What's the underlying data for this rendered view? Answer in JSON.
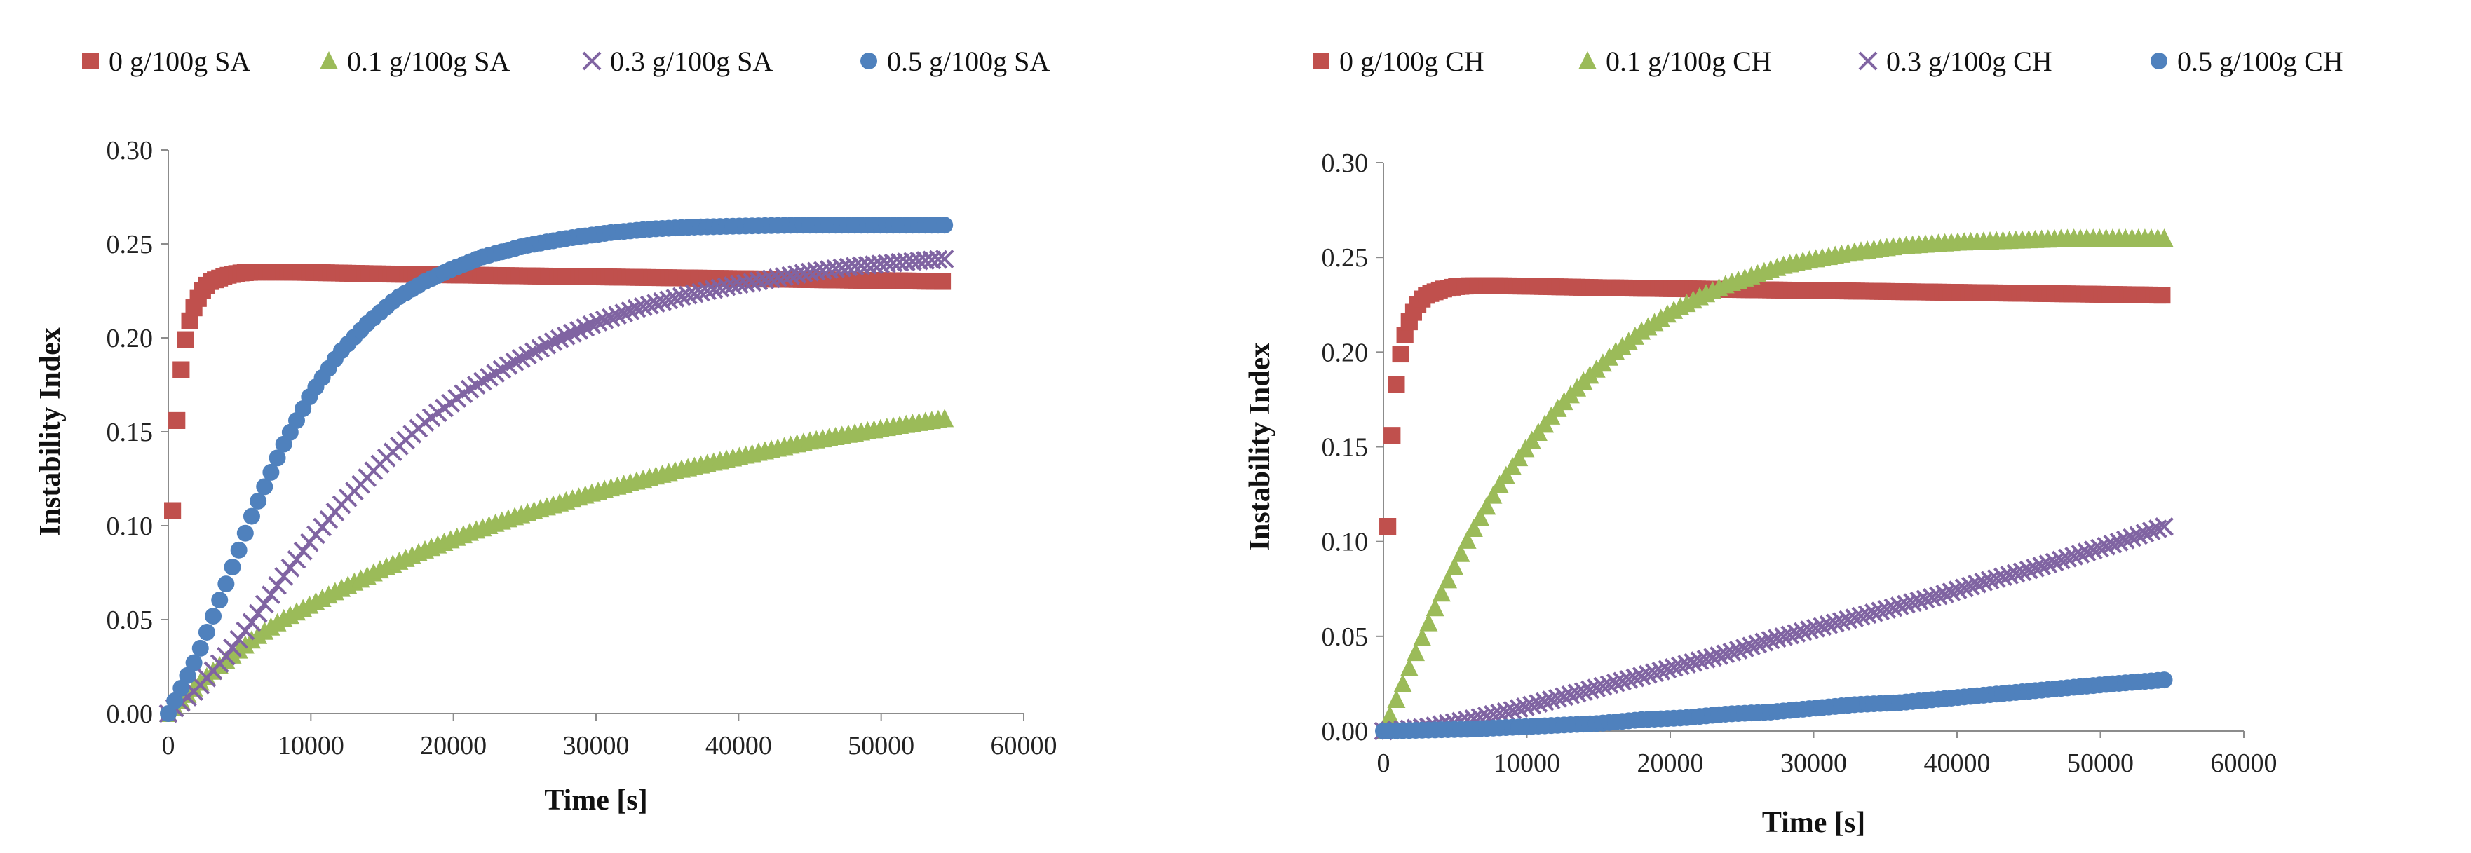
{
  "chart_data": [
    {
      "type": "scatter",
      "title": "",
      "xlabel": "Time [s]",
      "ylabel": "Instability Index",
      "xlim": [
        0,
        60000
      ],
      "ylim": [
        0,
        0.3
      ],
      "xticks": [
        "0",
        "10000",
        "20000",
        "30000",
        "40000",
        "50000",
        "60000"
      ],
      "yticks": [
        "0.00",
        "0.05",
        "0.10",
        "0.15",
        "0.20",
        "0.25",
        "0.30"
      ],
      "grid": false,
      "legend_position": "top",
      "series": [
        {
          "name": "0 g/100g SA",
          "marker": "square",
          "color": "#c0504d",
          "x": [
            300,
            600,
            900,
            1200,
            1500,
            1800,
            2100,
            2400,
            2700,
            3000,
            4000,
            5000,
            6000,
            8000,
            10000,
            15000,
            20000,
            25000,
            30000,
            35000,
            40000,
            45000,
            50000,
            54500
          ],
          "y": [
            0.108,
            0.156,
            0.183,
            0.199,
            0.209,
            0.216,
            0.221,
            0.225,
            0.228,
            0.23,
            0.233,
            0.2345,
            0.235,
            0.235,
            0.2348,
            0.234,
            0.2335,
            0.233,
            0.2325,
            0.232,
            0.2315,
            0.231,
            0.2305,
            0.23
          ]
        },
        {
          "name": "0.1 g/100g SA",
          "marker": "triangle",
          "color": "#9bbb59",
          "x": [
            0,
            2000,
            4000,
            6000,
            8000,
            10000,
            12000,
            15000,
            18000,
            21000,
            24000,
            27000,
            30000,
            33000,
            36000,
            39000,
            42000,
            45000,
            48000,
            51000,
            54500
          ],
          "y": [
            0.0,
            0.015,
            0.028,
            0.04,
            0.05,
            0.058,
            0.066,
            0.077,
            0.087,
            0.096,
            0.104,
            0.111,
            0.118,
            0.124,
            0.13,
            0.135,
            0.14,
            0.145,
            0.149,
            0.153,
            0.157
          ]
        },
        {
          "name": "0.3 g/100g SA",
          "marker": "x",
          "color": "#8064a2",
          "x": [
            0,
            2000,
            4000,
            6000,
            8000,
            10000,
            12000,
            15000,
            18000,
            21000,
            24000,
            27000,
            30000,
            33000,
            36000,
            39000,
            42000,
            45000,
            48000,
            51000,
            54500
          ],
          "y": [
            0.0,
            0.013,
            0.03,
            0.05,
            0.072,
            0.092,
            0.11,
            0.134,
            0.155,
            0.172,
            0.186,
            0.198,
            0.208,
            0.216,
            0.222,
            0.227,
            0.231,
            0.235,
            0.238,
            0.24,
            0.242
          ]
        },
        {
          "name": "0.5 g/100g SA",
          "marker": "circle",
          "color": "#4f81bd",
          "x": [
            0,
            2000,
            4000,
            6000,
            8000,
            10000,
            12000,
            14000,
            16000,
            18000,
            20000,
            22000,
            25000,
            28000,
            31000,
            34000,
            37000,
            40000,
            44000,
            48000,
            51000,
            54500
          ],
          "y": [
            0.0,
            0.03,
            0.068,
            0.108,
            0.142,
            0.17,
            0.192,
            0.208,
            0.221,
            0.23,
            0.237,
            0.243,
            0.249,
            0.253,
            0.256,
            0.258,
            0.259,
            0.2595,
            0.26,
            0.26,
            0.26,
            0.26
          ]
        }
      ]
    },
    {
      "type": "scatter",
      "title": "",
      "xlabel": "Time [s]",
      "ylabel": "Instability Index",
      "xlim": [
        0,
        60000
      ],
      "ylim": [
        0,
        0.3
      ],
      "xticks": [
        "0",
        "10000",
        "20000",
        "30000",
        "40000",
        "50000",
        "60000"
      ],
      "yticks": [
        "0.00",
        "0.05",
        "0.10",
        "0.15",
        "0.20",
        "0.25",
        "0.30"
      ],
      "grid": false,
      "legend_position": "top",
      "series": [
        {
          "name": "0  g/100g CH",
          "marker": "square",
          "color": "#c0504d",
          "x": [
            300,
            600,
            900,
            1200,
            1500,
            1800,
            2100,
            2400,
            2700,
            3000,
            4000,
            5000,
            6000,
            8000,
            10000,
            15000,
            20000,
            25000,
            30000,
            35000,
            40000,
            45000,
            50000,
            54500
          ],
          "y": [
            0.108,
            0.156,
            0.183,
            0.199,
            0.209,
            0.216,
            0.221,
            0.225,
            0.228,
            0.23,
            0.233,
            0.2345,
            0.235,
            0.235,
            0.2348,
            0.234,
            0.2335,
            0.233,
            0.2325,
            0.232,
            0.2315,
            0.231,
            0.2305,
            0.23
          ]
        },
        {
          "name": "0.1 g/100g CH",
          "marker": "triangle",
          "color": "#9bbb59",
          "x": [
            0,
            2000,
            4000,
            6000,
            8000,
            10000,
            12000,
            14000,
            16000,
            18000,
            20000,
            22000,
            24000,
            26000,
            28000,
            30000,
            33000,
            36000,
            40000,
            44000,
            48000,
            51000,
            54500
          ],
          "y": [
            0.0,
            0.037,
            0.072,
            0.103,
            0.129,
            0.15,
            0.169,
            0.185,
            0.199,
            0.211,
            0.221,
            0.229,
            0.236,
            0.241,
            0.246,
            0.249,
            0.253,
            0.256,
            0.258,
            0.259,
            0.26,
            0.26,
            0.26
          ]
        },
        {
          "name": "0.3 g/100g CH",
          "marker": "x",
          "color": "#8064a2",
          "x": [
            0,
            3000,
            6000,
            9000,
            12000,
            15000,
            18000,
            21000,
            24000,
            27000,
            30000,
            33000,
            36000,
            39000,
            42000,
            45000,
            48000,
            51000,
            54500
          ],
          "y": [
            0.0,
            0.002,
            0.006,
            0.011,
            0.017,
            0.023,
            0.029,
            0.035,
            0.041,
            0.048,
            0.054,
            0.06,
            0.066,
            0.072,
            0.079,
            0.085,
            0.092,
            0.099,
            0.108
          ]
        },
        {
          "name": "0.5 g/100g CH",
          "marker": "circle",
          "color": "#4f81bd",
          "x": [
            0,
            3000,
            6000,
            9000,
            12000,
            15000,
            18000,
            21000,
            24000,
            27000,
            30000,
            33000,
            36000,
            39000,
            42000,
            45000,
            48000,
            51000,
            54500
          ],
          "y": [
            0.0,
            0.0005,
            0.001,
            0.002,
            0.003,
            0.004,
            0.006,
            0.007,
            0.009,
            0.01,
            0.012,
            0.014,
            0.015,
            0.017,
            0.019,
            0.021,
            0.023,
            0.025,
            0.027
          ]
        }
      ]
    }
  ]
}
